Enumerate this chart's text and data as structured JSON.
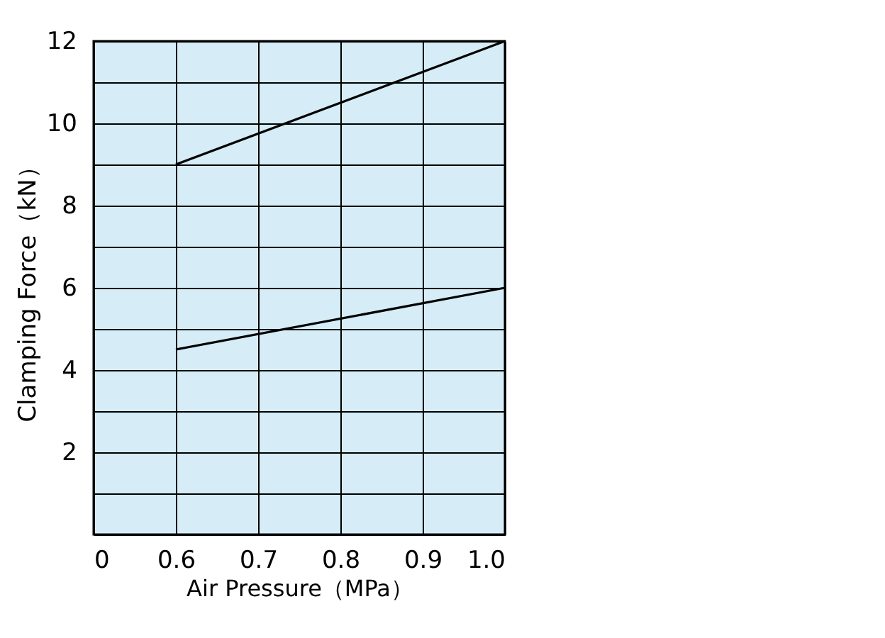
{
  "chart_data": {
    "type": "line",
    "xlabel": "Air Pressure（MPa）",
    "ylabel": "Clamping Force（kN）",
    "series": [
      {
        "color": "#000000",
        "values": [
          9,
          12
        ]
      },
      {
        "color": "#000000",
        "values": [
          4.5,
          6
        ]
      }
    ],
    "x": [
      0.6,
      1.0
    ],
    "xlim": [
      0.5,
      1.0
    ],
    "xticks": [
      {
        "value": 0.5,
        "label": "0"
      },
      {
        "value": 0.6,
        "label": "0.6"
      },
      {
        "value": 0.7,
        "label": "0.7"
      },
      {
        "value": 0.8,
        "label": "0.8"
      },
      {
        "value": 0.9,
        "label": "0.9"
      },
      {
        "value": 1.0,
        "label": "1.0"
      }
    ],
    "ylim": [
      0,
      12
    ],
    "yticks": [
      {
        "value": 0,
        "label": null
      },
      {
        "value": 1,
        "label": null
      },
      2,
      {
        "value": 3,
        "label": null
      },
      4,
      {
        "value": 5,
        "label": null
      },
      6,
      {
        "value": 7,
        "label": null
      },
      8,
      {
        "value": 9,
        "label": null
      },
      10,
      {
        "value": 11,
        "label": null
      },
      12
    ],
    "grid": true,
    "marker": "none",
    "line_style": "solid",
    "legend": false
  }
}
